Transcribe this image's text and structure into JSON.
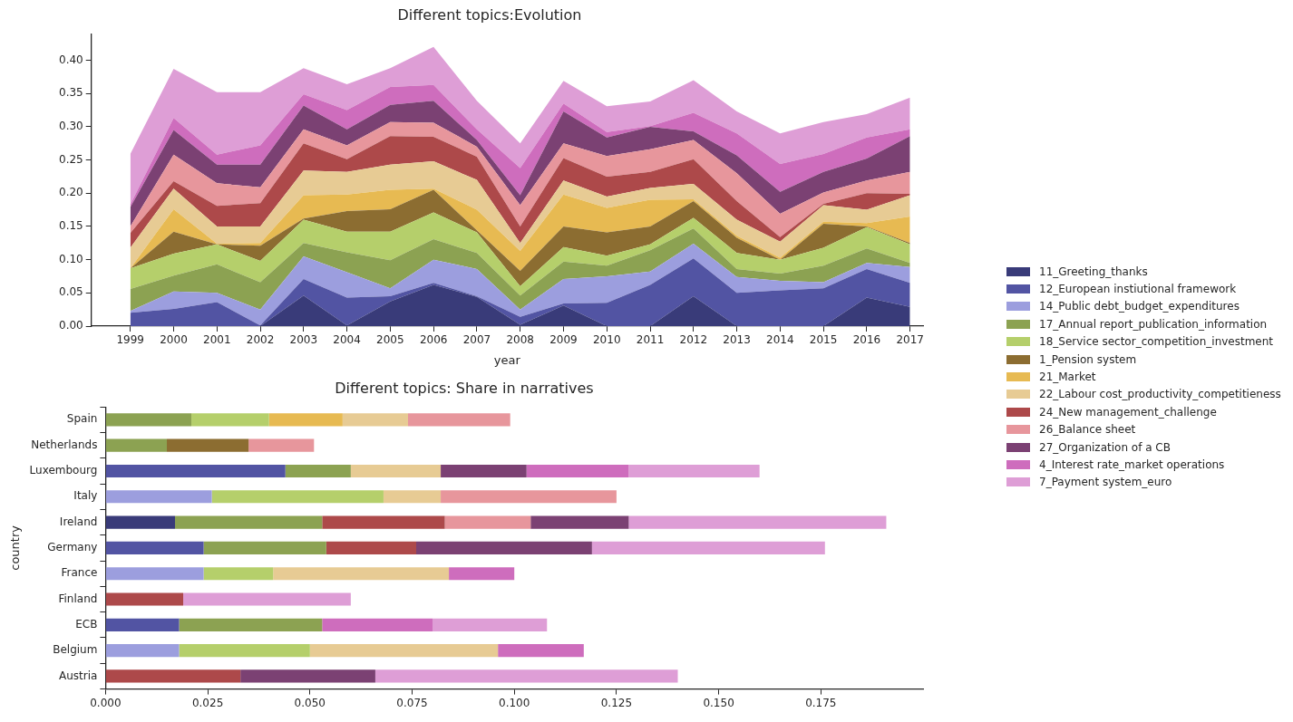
{
  "chart_data": [
    {
      "type": "area",
      "title": "Different topics:Evolution",
      "xlabel": "year",
      "stacked": true,
      "grid": false,
      "legend": "right",
      "x": [
        1999,
        2000,
        2001,
        2002,
        2003,
        2004,
        2005,
        2006,
        2007,
        2008,
        2009,
        2010,
        2011,
        2012,
        2013,
        2014,
        2015,
        2016,
        2017
      ],
      "xlim": [
        1998.1,
        2017.3
      ],
      "xticks": [
        1999,
        2000,
        2001,
        2002,
        2003,
        2004,
        2005,
        2006,
        2007,
        2008,
        2009,
        2010,
        2011,
        2012,
        2013,
        2014,
        2015,
        2016,
        2017
      ],
      "ylim": [
        0,
        0.44
      ],
      "yticks": [
        {
          "value": 0,
          "label": "0.00"
        },
        {
          "value": 0.05,
          "label": "0.05"
        },
        {
          "value": 0.1,
          "label": "0.10"
        },
        {
          "value": 0.15,
          "label": "0.15"
        },
        {
          "value": 0.2,
          "label": "0.20"
        },
        {
          "value": 0.25,
          "label": "0.25"
        },
        {
          "value": 0.3,
          "label": "0.30"
        },
        {
          "value": 0.35,
          "label": "0.35"
        },
        {
          "value": 0.4,
          "label": "0.40"
        }
      ],
      "series": [
        {
          "name": "11_Greeting_thanks",
          "color": "#393b79",
          "values": [
            0,
            0,
            0,
            0,
            0.046,
            0.001,
            0.037,
            0.062,
            0.044,
            0.002,
            0.031,
            0,
            0,
            0.045,
            0,
            0,
            0,
            0.043,
            0.029
          ]
        },
        {
          "name": "12_European instiutional framework",
          "color": "#5254a3",
          "values": [
            0.02,
            0.026,
            0.036,
            0.001,
            0.025,
            0.042,
            0.008,
            0.003,
            0.001,
            0.012,
            0.003,
            0.035,
            0.062,
            0.057,
            0.05,
            0.054,
            0.057,
            0.043,
            0.036
          ]
        },
        {
          "name": "14_Public debt_budget_expenditures",
          "color": "#9c9ede",
          "values": [
            0.003,
            0.026,
            0.014,
            0.024,
            0.034,
            0.038,
            0.012,
            0.035,
            0.041,
            0.011,
            0.037,
            0.04,
            0.02,
            0.022,
            0.024,
            0.014,
            0.009,
            0.009,
            0.024
          ]
        },
        {
          "name": "17_Annual report_publication_information",
          "color": "#8ca252",
          "values": [
            0.033,
            0.024,
            0.043,
            0.041,
            0.02,
            0.03,
            0.042,
            0.031,
            0.024,
            0.021,
            0.026,
            0.016,
            0.032,
            0.023,
            0.012,
            0.011,
            0.025,
            0.022,
            0.006
          ]
        },
        {
          "name": "18_Service sector_competition_investment",
          "color": "#b5cf6b",
          "values": [
            0.031,
            0.033,
            0.03,
            0.032,
            0.035,
            0.031,
            0.043,
            0.04,
            0.031,
            0.014,
            0.022,
            0.015,
            0.009,
            0.016,
            0.024,
            0.021,
            0.027,
            0.032,
            0.028
          ]
        },
        {
          "name": "1_Pension system",
          "color": "#8c6d31",
          "values": [
            0,
            0.033,
            0,
            0.023,
            0.002,
            0.031,
            0.034,
            0.034,
            0.003,
            0.023,
            0.031,
            0.035,
            0.027,
            0.025,
            0.023,
            0,
            0.036,
            0.001,
            0.002
          ]
        },
        {
          "name": "21_Market",
          "color": "#e7ba52",
          "values": [
            0,
            0.034,
            0.001,
            0.004,
            0.035,
            0.025,
            0.029,
            0.002,
            0.031,
            0.03,
            0.048,
            0.037,
            0.04,
            0.003,
            0.003,
            0.003,
            0.003,
            0.005,
            0.04
          ]
        },
        {
          "name": "22_Labour cost_productivity_competitieness",
          "color": "#e7cb94",
          "values": [
            0.031,
            0.031,
            0.026,
            0.025,
            0.037,
            0.034,
            0.038,
            0.041,
            0.045,
            0.012,
            0.021,
            0.017,
            0.018,
            0.023,
            0.024,
            0.024,
            0.025,
            0.02,
            0.032
          ]
        },
        {
          "name": "24_New management_challenge",
          "color": "#ad494a",
          "values": [
            0.022,
            0.011,
            0.031,
            0.035,
            0.041,
            0.019,
            0.043,
            0.037,
            0.035,
            0.025,
            0.034,
            0.03,
            0.024,
            0.037,
            0.028,
            0.007,
            0.002,
            0.025,
            0.002
          ]
        },
        {
          "name": "26_Balance sheet",
          "color": "#e7969c",
          "values": [
            0.01,
            0.04,
            0.034,
            0.024,
            0.021,
            0.021,
            0.021,
            0.021,
            0.015,
            0.032,
            0.022,
            0.031,
            0.034,
            0.029,
            0.042,
            0.035,
            0.017,
            0.019,
            0.033
          ]
        },
        {
          "name": "27_Organization of a CB",
          "color": "#7b4173",
          "values": [
            0.029,
            0.037,
            0.028,
            0.034,
            0.036,
            0.024,
            0.026,
            0.033,
            0.01,
            0.015,
            0.048,
            0.028,
            0.034,
            0.013,
            0.027,
            0.033,
            0.031,
            0.033,
            0.054
          ]
        },
        {
          "name": "4_Interest rate_market operations",
          "color": "#ce6dbd",
          "values": [
            0.004,
            0.018,
            0.015,
            0.029,
            0.017,
            0.029,
            0.027,
            0.024,
            0.016,
            0.041,
            0.012,
            0.008,
            0.001,
            0.028,
            0.033,
            0.042,
            0.027,
            0.032,
            0.01
          ]
        },
        {
          "name": "7_Payment system_euro",
          "color": "#de9ed6",
          "values": [
            0.076,
            0.074,
            0.094,
            0.08,
            0.039,
            0.039,
            0.028,
            0.057,
            0.043,
            0.037,
            0.034,
            0.039,
            0.037,
            0.049,
            0.033,
            0.046,
            0.048,
            0.035,
            0.048
          ]
        }
      ]
    },
    {
      "type": "bar",
      "title": "Different topics: Share in narratives",
      "ylabel": "country",
      "orientation": "horizontal",
      "stacked": true,
      "grid": false,
      "categories": [
        "Spain",
        "Netherlands",
        "Luxembourg",
        "Italy",
        "Ireland",
        "Germany",
        "France",
        "Finland",
        "ECB",
        "Belgium",
        "Austria"
      ],
      "xlim": [
        0,
        0.2
      ],
      "xticks": [
        {
          "value": 0,
          "label": "0.000"
        },
        {
          "value": 0.025,
          "label": "0.025"
        },
        {
          "value": 0.05,
          "label": "0.050"
        },
        {
          "value": 0.075,
          "label": "0.075"
        },
        {
          "value": 0.1,
          "label": "0.100"
        },
        {
          "value": 0.125,
          "label": "0.125"
        },
        {
          "value": 0.15,
          "label": "0.150"
        },
        {
          "value": 0.175,
          "label": "0.175"
        }
      ],
      "series": [
        {
          "color": "#393b79",
          "values": [
            null,
            null,
            null,
            null,
            0.017,
            null,
            null,
            null,
            null,
            null,
            null
          ]
        },
        {
          "color": "#5254a3",
          "values": [
            null,
            null,
            0.044,
            null,
            null,
            0.024,
            null,
            null,
            0.018,
            null,
            null
          ]
        },
        {
          "color": "#9c9ede",
          "values": [
            null,
            null,
            null,
            0.026,
            null,
            null,
            0.024,
            null,
            null,
            0.018,
            null
          ]
        },
        {
          "color": "#8ca252",
          "values": [
            0.021,
            0.015,
            0.016,
            null,
            0.036,
            0.03,
            null,
            null,
            0.035,
            null,
            null
          ]
        },
        {
          "color": "#b5cf6b",
          "values": [
            0.019,
            null,
            null,
            0.042,
            null,
            null,
            0.017,
            null,
            null,
            0.032,
            null
          ]
        },
        {
          "color": "#8c6d31",
          "values": [
            null,
            0.02,
            null,
            null,
            null,
            null,
            null,
            null,
            null,
            null,
            null
          ]
        },
        {
          "color": "#e7ba52",
          "values": [
            0.018,
            null,
            null,
            null,
            null,
            null,
            null,
            null,
            null,
            null,
            null
          ]
        },
        {
          "color": "#e7cb94",
          "values": [
            0.016,
            null,
            0.022,
            0.014,
            null,
            null,
            0.043,
            null,
            null,
            0.046,
            null
          ]
        },
        {
          "color": "#ad494a",
          "values": [
            null,
            null,
            null,
            null,
            0.03,
            0.022,
            null,
            0.019,
            null,
            null,
            0.033
          ]
        },
        {
          "color": "#e7969c",
          "values": [
            0.025,
            0.016,
            null,
            0.043,
            0.021,
            null,
            null,
            null,
            null,
            null,
            null
          ]
        },
        {
          "color": "#7b4173",
          "values": [
            null,
            null,
            0.021,
            null,
            0.024,
            0.043,
            null,
            null,
            null,
            null,
            0.033
          ]
        },
        {
          "color": "#ce6dbd",
          "values": [
            null,
            null,
            0.025,
            null,
            null,
            null,
            0.016,
            null,
            0.027,
            0.021,
            null
          ]
        },
        {
          "color": "#de9ed6",
          "values": [
            null,
            null,
            0.032,
            null,
            0.063,
            0.057,
            null,
            0.041,
            0.028,
            null,
            0.074
          ]
        }
      ]
    }
  ]
}
